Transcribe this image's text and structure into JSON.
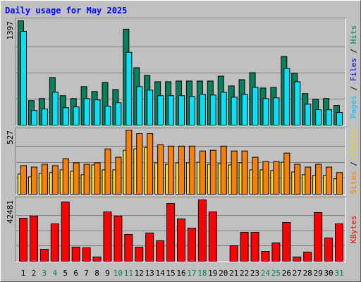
{
  "chart_data": {
    "type": "bar",
    "title": "Daily usage for May 2025",
    "categories": [
      "1",
      "2",
      "3",
      "4",
      "5",
      "6",
      "7",
      "8",
      "9",
      "10",
      "11",
      "12",
      "13",
      "14",
      "15",
      "16",
      "17",
      "18",
      "19",
      "20",
      "21",
      "22",
      "23",
      "24",
      "25",
      "26",
      "27",
      "28",
      "29",
      "30",
      "31"
    ],
    "category_colors": [
      "#000000",
      "#000000",
      "#00805c",
      "#00805c",
      "#000000",
      "#000000",
      "#000000",
      "#000000",
      "#000000",
      "#00805c",
      "#00805c",
      "#000000",
      "#000000",
      "#000000",
      "#000000",
      "#000000",
      "#00805c",
      "#00805c",
      "#000000",
      "#000000",
      "#000000",
      "#000000",
      "#000000",
      "#00805c",
      "#00805c",
      "#000000",
      "#000000",
      "#000000",
      "#000000",
      "#000000",
      "#00805c"
    ],
    "panels": [
      {
        "ylim": [
          0,
          1397
        ],
        "yticks": [
          1397
        ],
        "legend": [
          {
            "text": "Pages",
            "color": "#00c8f0"
          },
          {
            "text": "Files",
            "color": "#0000ff"
          },
          {
            "text": "Hits",
            "color": "#00805c"
          }
        ],
        "series": [
          {
            "color": "#00805c",
            "values": [
              1397,
              328,
              356,
              638,
              394,
              356,
              516,
              450,
              572,
              478,
              1285,
              769,
              666,
              581,
              581,
              591,
              591,
              591,
              591,
              656,
              525,
              609,
              703,
              497,
              506,
              919,
              694,
              422,
              347,
              356,
              263
            ]
          },
          {
            "color": "#00e0ff",
            "values": [
              1256,
              197,
              216,
              441,
              234,
              244,
              356,
              338,
              253,
              300,
              975,
              516,
              469,
              394,
              394,
              394,
              384,
              413,
              403,
              441,
              375,
              413,
              506,
              356,
              366,
              759,
              581,
              281,
              206,
              206,
              169
            ]
          }
        ]
      },
      {
        "ylim": [
          0,
          527
        ],
        "yticks": [
          527
        ],
        "legend": [
          {
            "text": "Sites",
            "color": "#ff8000"
          },
          {
            "text": "Visits",
            "color": "#e8d800"
          }
        ],
        "series": [
          {
            "color": "#ffe030",
            "values": [
              166,
              143,
              172,
              178,
              200,
              189,
              160,
              241,
              200,
              200,
              361,
              372,
              384,
              258,
              246,
              258,
              258,
              263,
              246,
              252,
              241,
              258,
              200,
              200,
              195,
              263,
              183,
              160,
              155,
              155,
              126
            ]
          },
          {
            "color": "#ff8000",
            "values": [
              235,
              223,
              246,
              235,
              292,
              258,
              246,
              258,
              372,
              304,
              527,
              498,
              498,
              407,
              395,
              395,
              395,
              355,
              361,
              395,
              355,
              355,
              304,
              269,
              269,
              338,
              246,
              223,
              246,
              223,
              178
            ]
          }
        ]
      },
      {
        "ylim": [
          0,
          42481
        ],
        "yticks": [
          42481
        ],
        "legend": [
          {
            "text": "KBytes",
            "color": "#ff0000"
          }
        ],
        "series": [
          {
            "color": "#ff0000",
            "values": [
              29787,
              31251,
              8301,
              25881,
              41019,
              9766,
              9278,
              2930,
              34182,
              31251,
              18556,
              9766,
              19532,
              14161,
              40042,
              29299,
              22951,
              42481,
              34182,
              0,
              10743,
              20020,
              20020,
              6836,
              12696,
              26857,
              2930,
              6348,
              33693,
              16114,
              25881
            ]
          }
        ]
      }
    ]
  }
}
